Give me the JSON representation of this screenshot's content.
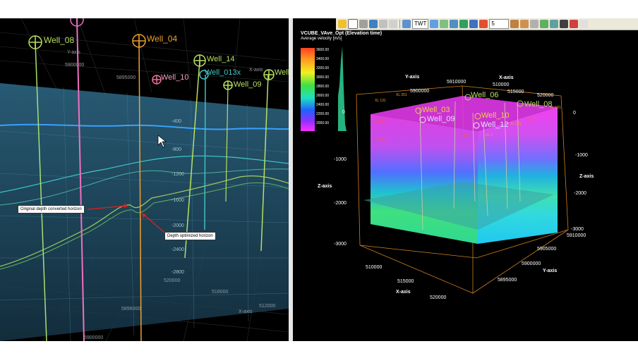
{
  "left_view": {
    "wells": [
      "Well_08",
      "Well_04",
      "Well_14",
      "Well_10",
      "Well_013x",
      "Well_09",
      "Well_"
    ],
    "axis_labels": {
      "y_axis": "Y-axis",
      "x_axis": "X-axis"
    },
    "ticks": {
      "y_5900000": "5900000",
      "y_5895000": "5895000",
      "depth": [
        "-400",
        "-800",
        "-1200",
        "-1600",
        "-2000",
        "-2400",
        "-2800"
      ],
      "x_520000": "520000",
      "x_516000": "516000",
      "x_512000": "512000",
      "y_5896000": "5896000",
      "bottom_tick": "5900000"
    },
    "callouts": {
      "original": "Original depth converted horizon",
      "optimized": "Depth optimized horizon"
    }
  },
  "toolbar": {
    "domain_combo": "TWT",
    "number_combo": "5"
  },
  "right_view": {
    "title": "VCUBE_VAve_Opt (Elevation time)",
    "subtitle": "Average velocity [m/s]",
    "legend_ticks": [
      "3600.00",
      "3400.00",
      "3200.00",
      "3000.00",
      "2800.00",
      "2600.00",
      "2400.00",
      "2200.00",
      "2000.00"
    ],
    "axis_labels": {
      "y_top": "Y-axis",
      "x_top": "X-axis",
      "z_left": "Z-axis",
      "z_right": "Z-axis",
      "x_bottom": "X-axis",
      "y_bottom": "Y-axis"
    },
    "top_y_ticks": [
      "5910000",
      "5900000"
    ],
    "top_x_ticks": [
      "510000",
      "515000",
      "520000"
    ],
    "z_left_ticks": [
      "0",
      "-1000",
      "-2000",
      "-3000"
    ],
    "z_right_ticks": [
      "0",
      "-1000",
      "-2000",
      "-3000"
    ],
    "bottom_x_ticks": [
      "510000",
      "515000",
      "520000"
    ],
    "bottom_y_ticks": [
      "5910000",
      "5905000",
      "5900000",
      "5895000"
    ],
    "wells": [
      "Well_03",
      "Well_09",
      "Well_10",
      "Well_12",
      "Well_08",
      "Well_06"
    ],
    "small_labels": [
      "XL 131",
      "XL 201",
      "XL 181",
      "XL 1",
      "XL 181",
      "IL 181",
      "IL 361",
      "IL 301",
      "IL 1"
    ]
  },
  "colors": {
    "panel_bg": "#000000",
    "plane_left": "#1f4a64",
    "well_orange": "#f0a030",
    "well_green": "#b8e060",
    "well_pink": "#f070c0",
    "box_orange": "#e09020"
  }
}
